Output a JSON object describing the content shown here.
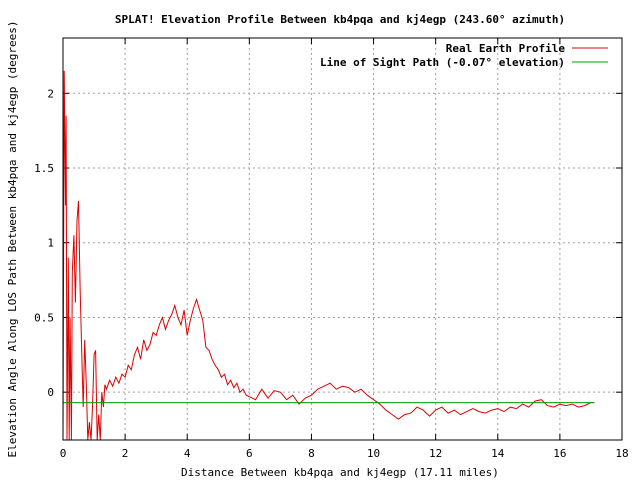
{
  "chart_data": {
    "type": "line",
    "title": "SPLAT! Elevation Profile Between kb4pqa and kj4egp (243.60° azimuth)",
    "xlabel": "Distance Between kb4pqa and kj4egp (17.11 miles)",
    "ylabel": "Elevation Angle Along LOS Path Between kb4pqa and kj4egp (degrees)",
    "xlim": [
      0,
      18
    ],
    "ylim": [
      -0.32,
      2.37
    ],
    "x_ticks": [
      0,
      2,
      4,
      6,
      8,
      10,
      12,
      14,
      16,
      18
    ],
    "x_tick_labels": [
      "0",
      "2",
      "4",
      "6",
      "8",
      "10",
      "12",
      "14",
      "16",
      "18"
    ],
    "y_ticks": [
      0,
      0.5,
      1,
      1.5,
      2
    ],
    "y_tick_labels": [
      "0",
      "0.5",
      "1",
      "1.5",
      "2"
    ],
    "grid": true,
    "legend_position": "top-right",
    "colors": {
      "profile": "#dd0000",
      "los": "#00a000",
      "axes": "#000000",
      "grid": "#a0a0a0"
    },
    "series": [
      {
        "name": "Real Earth Profile",
        "x": [
          0,
          0.04,
          0.08,
          0.1,
          0.13,
          0.17,
          0.2,
          0.23,
          0.27,
          0.3,
          0.35,
          0.4,
          0.45,
          0.5,
          0.55,
          0.6,
          0.65,
          0.7,
          0.75,
          0.8,
          0.85,
          0.9,
          0.95,
          1.0,
          1.05,
          1.1,
          1.15,
          1.2,
          1.25,
          1.3,
          1.35,
          1.4,
          1.5,
          1.6,
          1.7,
          1.8,
          1.9,
          2.0,
          2.1,
          2.2,
          2.3,
          2.4,
          2.5,
          2.6,
          2.7,
          2.8,
          2.9,
          3.0,
          3.1,
          3.2,
          3.3,
          3.4,
          3.5,
          3.6,
          3.7,
          3.8,
          3.9,
          4.0,
          4.1,
          4.2,
          4.3,
          4.4,
          4.5,
          4.6,
          4.7,
          4.8,
          4.9,
          5.0,
          5.1,
          5.2,
          5.3,
          5.4,
          5.5,
          5.6,
          5.7,
          5.8,
          5.9,
          6.0,
          6.2,
          6.4,
          6.6,
          6.8,
          7.0,
          7.2,
          7.4,
          7.6,
          7.8,
          8.0,
          8.2,
          8.4,
          8.6,
          8.8,
          9.0,
          9.2,
          9.4,
          9.6,
          9.8,
          10.0,
          10.2,
          10.4,
          10.6,
          10.8,
          11.0,
          11.2,
          11.4,
          11.6,
          11.8,
          12.0,
          12.2,
          12.4,
          12.6,
          12.8,
          13.0,
          13.2,
          13.4,
          13.6,
          13.8,
          14.0,
          14.2,
          14.4,
          14.6,
          14.8,
          15.0,
          15.2,
          15.4,
          15.6,
          15.8,
          16.0,
          16.2,
          16.4,
          16.6,
          16.8,
          17.0,
          17.11
        ],
        "y": [
          -0.32,
          2.15,
          1.25,
          1.85,
          -0.32,
          0.9,
          -0.32,
          0.5,
          -0.32,
          0.8,
          1.05,
          0.6,
          1.15,
          1.28,
          0.7,
          0.3,
          -0.1,
          0.35,
          0.05,
          -0.32,
          -0.2,
          -0.32,
          -0.1,
          0.25,
          0.28,
          -0.32,
          -0.15,
          -0.32,
          0.0,
          -0.1,
          0.05,
          0.02,
          0.08,
          0.04,
          0.1,
          0.06,
          0.12,
          0.1,
          0.18,
          0.15,
          0.25,
          0.3,
          0.22,
          0.35,
          0.28,
          0.32,
          0.4,
          0.38,
          0.45,
          0.5,
          0.42,
          0.48,
          0.52,
          0.58,
          0.5,
          0.45,
          0.55,
          0.38,
          0.48,
          0.56,
          0.62,
          0.55,
          0.48,
          0.3,
          0.28,
          0.22,
          0.18,
          0.15,
          0.1,
          0.12,
          0.05,
          0.08,
          0.03,
          0.06,
          0.0,
          0.02,
          -0.02,
          -0.03,
          -0.05,
          0.02,
          -0.04,
          0.01,
          0.0,
          -0.05,
          -0.02,
          -0.08,
          -0.04,
          -0.02,
          0.02,
          0.04,
          0.06,
          0.02,
          0.04,
          0.03,
          0.0,
          0.02,
          -0.02,
          -0.05,
          -0.08,
          -0.12,
          -0.15,
          -0.18,
          -0.15,
          -0.14,
          -0.1,
          -0.12,
          -0.16,
          -0.12,
          -0.1,
          -0.14,
          -0.12,
          -0.15,
          -0.13,
          -0.11,
          -0.13,
          -0.14,
          -0.12,
          -0.11,
          -0.13,
          -0.1,
          -0.11,
          -0.08,
          -0.1,
          -0.06,
          -0.05,
          -0.09,
          -0.1,
          -0.08,
          -0.09,
          -0.08,
          -0.1,
          -0.09,
          -0.07,
          -0.07
        ]
      },
      {
        "name": "Line of Sight Path (-0.07° elevation)",
        "x": [
          0,
          17.11
        ],
        "y": [
          -0.07,
          -0.07
        ]
      }
    ]
  }
}
